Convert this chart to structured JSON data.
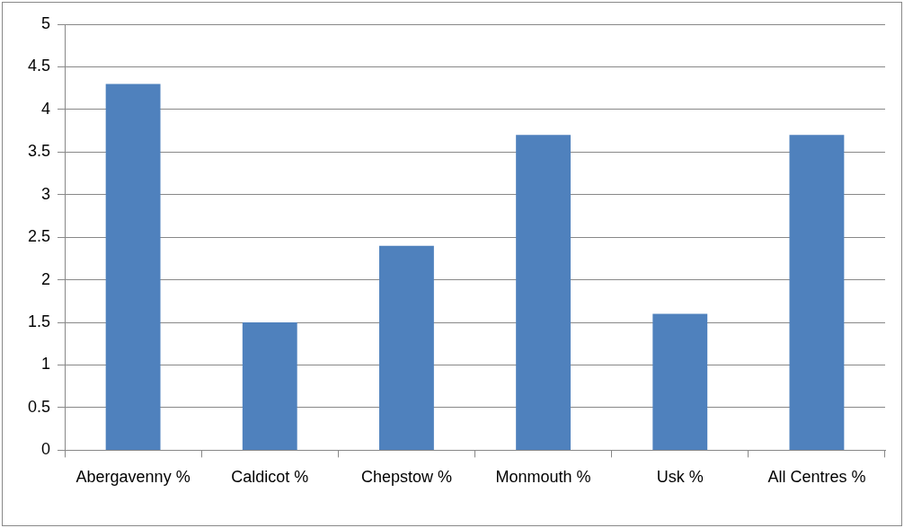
{
  "chart_data": {
    "type": "bar",
    "categories": [
      "Abergavenny %",
      "Caldicot %",
      "Chepstow %",
      "Monmouth %",
      "Usk %",
      "All Centres %"
    ],
    "values": [
      4.3,
      1.5,
      2.4,
      3.7,
      1.6,
      3.7
    ],
    "color": "#4f81bd",
    "ylim": [
      0,
      5
    ],
    "yticks": [
      0,
      0.5,
      1,
      1.5,
      2,
      2.5,
      3,
      3.5,
      4,
      4.5,
      5
    ],
    "grid": "y",
    "legend": false
  }
}
